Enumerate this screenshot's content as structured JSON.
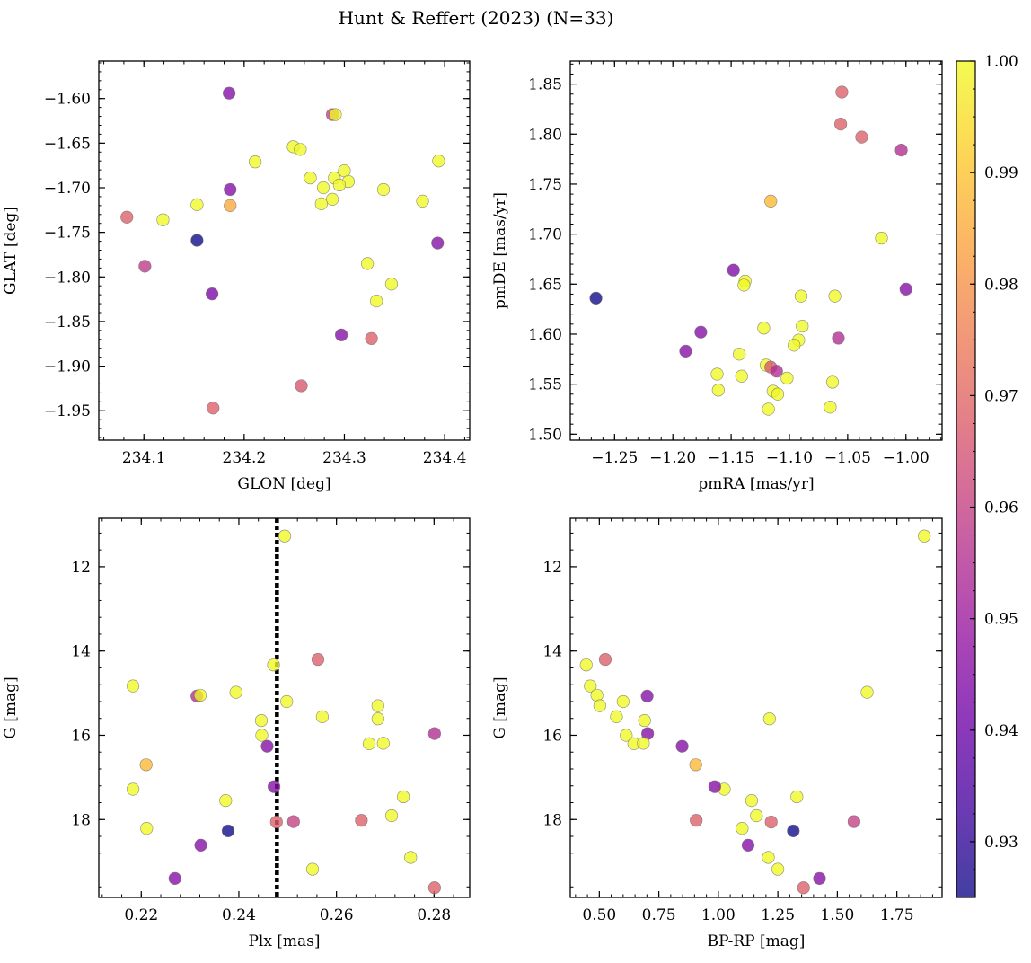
{
  "figure": {
    "title": "Hunt & Reffert (2023) (N=33)",
    "colormap": [
      "#0d0887",
      "#46039f",
      "#7201a8",
      "#9c179e",
      "#bd3786",
      "#d8576b",
      "#ed7953",
      "#fb9f3a",
      "#fdca26",
      "#f0f921"
    ],
    "point_alpha": 0.78
  },
  "colorbar": {
    "range": [
      0.925,
      1.0
    ],
    "ticks": [
      0.93,
      0.94,
      0.95,
      0.96,
      0.97,
      0.98,
      0.99,
      1.0
    ],
    "tick_labels": [
      "0.93",
      "0.94",
      "0.95",
      "0.96",
      "0.97",
      "0.98",
      "0.99",
      "1.00"
    ]
  },
  "chart_data": [
    {
      "type": "scatter",
      "xlabel": "GLON [deg]",
      "ylabel": "GLAT [deg]",
      "xlim": [
        234.055,
        234.425
      ],
      "ylim": [
        -1.983,
        -1.558
      ],
      "xticks": [
        234.1,
        234.2,
        234.3,
        234.4
      ],
      "xtick_labels": [
        "234.1",
        "234.2",
        "234.3",
        "234.4"
      ],
      "yticks": [
        -1.95,
        -1.9,
        -1.85,
        -1.8,
        -1.75,
        -1.7,
        -1.65,
        -1.6
      ],
      "ytick_labels": [
        "−1.95",
        "−1.90",
        "−1.85",
        "−1.80",
        "−1.75",
        "−1.70",
        "−1.65",
        "−1.60"
      ],
      "x_minor_step": 0.02,
      "y_minor_step": 0.01,
      "points": [
        {
          "x": 234.185,
          "y": -1.594,
          "c": 0.945
        },
        {
          "x": 234.288,
          "y": -1.618,
          "c": 0.96
        },
        {
          "x": 234.291,
          "y": -1.618,
          "c": 1.0
        },
        {
          "x": 234.249,
          "y": -1.654,
          "c": 1.0
        },
        {
          "x": 234.256,
          "y": -1.657,
          "c": 1.0
        },
        {
          "x": 234.211,
          "y": -1.671,
          "c": 1.0
        },
        {
          "x": 234.394,
          "y": -1.67,
          "c": 1.0
        },
        {
          "x": 234.3,
          "y": -1.681,
          "c": 1.0
        },
        {
          "x": 234.266,
          "y": -1.689,
          "c": 1.0
        },
        {
          "x": 234.29,
          "y": -1.689,
          "c": 1.0
        },
        {
          "x": 234.304,
          "y": -1.693,
          "c": 1.0
        },
        {
          "x": 234.295,
          "y": -1.697,
          "c": 1.0
        },
        {
          "x": 234.279,
          "y": -1.7,
          "c": 1.0
        },
        {
          "x": 234.186,
          "y": -1.702,
          "c": 0.945
        },
        {
          "x": 234.339,
          "y": -1.702,
          "c": 1.0
        },
        {
          "x": 234.288,
          "y": -1.713,
          "c": 1.0
        },
        {
          "x": 234.378,
          "y": -1.715,
          "c": 1.0
        },
        {
          "x": 234.277,
          "y": -1.718,
          "c": 1.0
        },
        {
          "x": 234.153,
          "y": -1.719,
          "c": 1.0
        },
        {
          "x": 234.186,
          "y": -1.72,
          "c": 0.985
        },
        {
          "x": 234.083,
          "y": -1.733,
          "c": 0.968
        },
        {
          "x": 234.119,
          "y": -1.736,
          "c": 1.0
        },
        {
          "x": 234.153,
          "y": -1.759,
          "c": 0.925
        },
        {
          "x": 234.393,
          "y": -1.762,
          "c": 0.945
        },
        {
          "x": 234.323,
          "y": -1.785,
          "c": 1.0
        },
        {
          "x": 234.101,
          "y": -1.788,
          "c": 0.958
        },
        {
          "x": 234.347,
          "y": -1.808,
          "c": 1.0
        },
        {
          "x": 234.168,
          "y": -1.819,
          "c": 0.943
        },
        {
          "x": 234.332,
          "y": -1.827,
          "c": 1.0
        },
        {
          "x": 234.297,
          "y": -1.865,
          "c": 0.945
        },
        {
          "x": 234.327,
          "y": -1.869,
          "c": 0.968
        },
        {
          "x": 234.257,
          "y": -1.922,
          "c": 0.966
        },
        {
          "x": 234.169,
          "y": -1.947,
          "c": 0.968
        }
      ]
    },
    {
      "type": "scatter",
      "xlabel": "pmRA [mas/yr]",
      "ylabel": "pmDE [mas/yr]",
      "xlim": [
        -1.288,
        -0.969
      ],
      "ylim": [
        1.494,
        1.873
      ],
      "xticks": [
        -1.25,
        -1.2,
        -1.15,
        -1.1,
        -1.05,
        -1.0
      ],
      "xtick_labels": [
        "−1.25",
        "−1.20",
        "−1.15",
        "−1.10",
        "−1.05",
        "−1.00"
      ],
      "yticks": [
        1.5,
        1.55,
        1.6,
        1.65,
        1.7,
        1.75,
        1.8,
        1.85
      ],
      "ytick_labels": [
        "1.50",
        "1.55",
        "1.60",
        "1.65",
        "1.70",
        "1.75",
        "1.80",
        "1.85"
      ],
      "x_minor_step": 0.01,
      "y_minor_step": 0.01,
      "points": [
        {
          "x": -1.055,
          "y": 1.842,
          "c": 0.968
        },
        {
          "x": -1.056,
          "y": 1.81,
          "c": 0.968
        },
        {
          "x": -1.038,
          "y": 1.797,
          "c": 0.968
        },
        {
          "x": -1.004,
          "y": 1.784,
          "c": 0.955
        },
        {
          "x": -1.116,
          "y": 1.733,
          "c": 0.988
        },
        {
          "x": -1.021,
          "y": 1.696,
          "c": 1.0
        },
        {
          "x": -1.266,
          "y": 1.636,
          "c": 0.925
        },
        {
          "x": -1.148,
          "y": 1.664,
          "c": 0.944
        },
        {
          "x": -1.138,
          "y": 1.653,
          "c": 1.0
        },
        {
          "x": -1.139,
          "y": 1.649,
          "c": 1.0
        },
        {
          "x": -1.0,
          "y": 1.645,
          "c": 0.945
        },
        {
          "x": -1.09,
          "y": 1.638,
          "c": 1.0
        },
        {
          "x": -1.061,
          "y": 1.638,
          "c": 1.0
        },
        {
          "x": -1.089,
          "y": 1.608,
          "c": 1.0
        },
        {
          "x": -1.122,
          "y": 1.606,
          "c": 1.0
        },
        {
          "x": -1.176,
          "y": 1.602,
          "c": 0.945
        },
        {
          "x": -1.058,
          "y": 1.596,
          "c": 0.955
        },
        {
          "x": -1.092,
          "y": 1.594,
          "c": 1.0
        },
        {
          "x": -1.096,
          "y": 1.589,
          "c": 1.0
        },
        {
          "x": -1.189,
          "y": 1.583,
          "c": 0.945
        },
        {
          "x": -1.143,
          "y": 1.58,
          "c": 1.0
        },
        {
          "x": -1.12,
          "y": 1.569,
          "c": 1.0
        },
        {
          "x": -1.116,
          "y": 1.567,
          "c": 0.966
        },
        {
          "x": -1.111,
          "y": 1.563,
          "c": 0.955
        },
        {
          "x": -1.162,
          "y": 1.56,
          "c": 1.0
        },
        {
          "x": -1.141,
          "y": 1.558,
          "c": 1.0
        },
        {
          "x": -1.102,
          "y": 1.556,
          "c": 1.0
        },
        {
          "x": -1.063,
          "y": 1.552,
          "c": 1.0
        },
        {
          "x": -1.161,
          "y": 1.544,
          "c": 1.0
        },
        {
          "x": -1.114,
          "y": 1.543,
          "c": 1.0
        },
        {
          "x": -1.11,
          "y": 1.54,
          "c": 1.0
        },
        {
          "x": -1.065,
          "y": 1.527,
          "c": 1.0
        },
        {
          "x": -1.118,
          "y": 1.525,
          "c": 1.0
        }
      ]
    },
    {
      "type": "scatter",
      "xlabel": "Plx [mas]",
      "ylabel": "G [mag]",
      "xlim": [
        0.2113,
        0.2873
      ],
      "ylim": [
        19.85,
        10.85
      ],
      "xticks": [
        0.22,
        0.24,
        0.26,
        0.28
      ],
      "xtick_labels": [
        "0.22",
        "0.24",
        "0.26",
        "0.28"
      ],
      "yticks": [
        12,
        14,
        16,
        18
      ],
      "ytick_labels": [
        "12",
        "14",
        "16",
        "18"
      ],
      "x_minor_step": 0.004,
      "y_minor_step": 0.4,
      "vline": 0.2478,
      "points": [
        {
          "x": 0.2494,
          "y": 11.27,
          "c": 1.0
        },
        {
          "x": 0.2471,
          "y": 14.33,
          "c": 1.0
        },
        {
          "x": 0.2562,
          "y": 14.2,
          "c": 0.968
        },
        {
          "x": 0.2183,
          "y": 14.83,
          "c": 1.0
        },
        {
          "x": 0.2314,
          "y": 15.07,
          "c": 0.955
        },
        {
          "x": 0.2321,
          "y": 15.05,
          "c": 1.0
        },
        {
          "x": 0.2394,
          "y": 14.98,
          "c": 1.0
        },
        {
          "x": 0.2498,
          "y": 15.2,
          "c": 1.0
        },
        {
          "x": 0.2685,
          "y": 15.3,
          "c": 1.0
        },
        {
          "x": 0.2571,
          "y": 15.56,
          "c": 1.0
        },
        {
          "x": 0.2685,
          "y": 15.61,
          "c": 1.0
        },
        {
          "x": 0.2446,
          "y": 15.65,
          "c": 1.0
        },
        {
          "x": 0.2447,
          "y": 16.0,
          "c": 1.0
        },
        {
          "x": 0.2801,
          "y": 15.96,
          "c": 0.955
        },
        {
          "x": 0.2667,
          "y": 16.2,
          "c": 1.0
        },
        {
          "x": 0.2696,
          "y": 16.19,
          "c": 1.0
        },
        {
          "x": 0.2458,
          "y": 16.26,
          "c": 0.945
        },
        {
          "x": 0.221,
          "y": 16.7,
          "c": 0.988
        },
        {
          "x": 0.2183,
          "y": 17.28,
          "c": 1.0
        },
        {
          "x": 0.2472,
          "y": 17.22,
          "c": 0.945
        },
        {
          "x": 0.2737,
          "y": 17.46,
          "c": 1.0
        },
        {
          "x": 0.2373,
          "y": 17.55,
          "c": 1.0
        },
        {
          "x": 0.2713,
          "y": 17.91,
          "c": 1.0
        },
        {
          "x": 0.2477,
          "y": 18.06,
          "c": 0.968
        },
        {
          "x": 0.2512,
          "y": 18.05,
          "c": 0.96
        },
        {
          "x": 0.2651,
          "y": 18.02,
          "c": 0.968
        },
        {
          "x": 0.2211,
          "y": 18.21,
          "c": 1.0
        },
        {
          "x": 0.2378,
          "y": 18.27,
          "c": 0.925
        },
        {
          "x": 0.2322,
          "y": 18.61,
          "c": 0.945
        },
        {
          "x": 0.2752,
          "y": 18.9,
          "c": 1.0
        },
        {
          "x": 0.2551,
          "y": 19.18,
          "c": 1.0
        },
        {
          "x": 0.2269,
          "y": 19.4,
          "c": 0.945
        },
        {
          "x": 0.2801,
          "y": 19.62,
          "c": 0.968
        }
      ]
    },
    {
      "type": "scatter",
      "xlabel": "BP-RP [mag]",
      "ylabel": "G [mag]",
      "xlim": [
        0.378,
        1.94
      ],
      "ylim": [
        19.85,
        10.85
      ],
      "xticks": [
        0.5,
        0.75,
        1.0,
        1.25,
        1.5,
        1.75
      ],
      "xtick_labels": [
        "0.50",
        "0.75",
        "1.00",
        "1.25",
        "1.50",
        "1.75"
      ],
      "yticks": [
        12,
        14,
        16,
        18
      ],
      "ytick_labels": [
        "12",
        "14",
        "16",
        "18"
      ],
      "x_minor_step": 0.05,
      "y_minor_step": 0.4,
      "points": [
        {
          "x": 1.865,
          "y": 11.27,
          "c": 1.0
        },
        {
          "x": 0.445,
          "y": 14.33,
          "c": 1.0
        },
        {
          "x": 0.525,
          "y": 14.2,
          "c": 0.968
        },
        {
          "x": 0.462,
          "y": 14.83,
          "c": 1.0
        },
        {
          "x": 0.701,
          "y": 15.07,
          "c": 0.945
        },
        {
          "x": 0.49,
          "y": 15.05,
          "c": 1.0
        },
        {
          "x": 1.625,
          "y": 14.98,
          "c": 1.0
        },
        {
          "x": 0.6,
          "y": 15.2,
          "c": 1.0
        },
        {
          "x": 0.502,
          "y": 15.3,
          "c": 1.0
        },
        {
          "x": 0.572,
          "y": 15.56,
          "c": 1.0
        },
        {
          "x": 1.215,
          "y": 15.61,
          "c": 1.0
        },
        {
          "x": 0.69,
          "y": 15.65,
          "c": 1.0
        },
        {
          "x": 0.613,
          "y": 16.0,
          "c": 1.0
        },
        {
          "x": 0.703,
          "y": 15.96,
          "c": 0.945
        },
        {
          "x": 0.645,
          "y": 16.2,
          "c": 1.0
        },
        {
          "x": 0.685,
          "y": 16.19,
          "c": 1.0
        },
        {
          "x": 0.848,
          "y": 16.26,
          "c": 0.945
        },
        {
          "x": 0.905,
          "y": 16.7,
          "c": 0.988
        },
        {
          "x": 1.025,
          "y": 17.28,
          "c": 1.0
        },
        {
          "x": 0.985,
          "y": 17.22,
          "c": 0.945
        },
        {
          "x": 1.33,
          "y": 17.46,
          "c": 1.0
        },
        {
          "x": 1.14,
          "y": 17.55,
          "c": 1.0
        },
        {
          "x": 1.16,
          "y": 17.91,
          "c": 1.0
        },
        {
          "x": 0.907,
          "y": 18.02,
          "c": 0.968
        },
        {
          "x": 1.222,
          "y": 18.06,
          "c": 0.968
        },
        {
          "x": 1.57,
          "y": 18.05,
          "c": 0.96
        },
        {
          "x": 1.1,
          "y": 18.21,
          "c": 1.0
        },
        {
          "x": 1.315,
          "y": 18.27,
          "c": 0.925
        },
        {
          "x": 1.125,
          "y": 18.61,
          "c": 0.945
        },
        {
          "x": 1.21,
          "y": 18.9,
          "c": 1.0
        },
        {
          "x": 1.25,
          "y": 19.18,
          "c": 1.0
        },
        {
          "x": 1.425,
          "y": 19.4,
          "c": 0.945
        },
        {
          "x": 1.358,
          "y": 19.62,
          "c": 0.968
        }
      ]
    }
  ]
}
